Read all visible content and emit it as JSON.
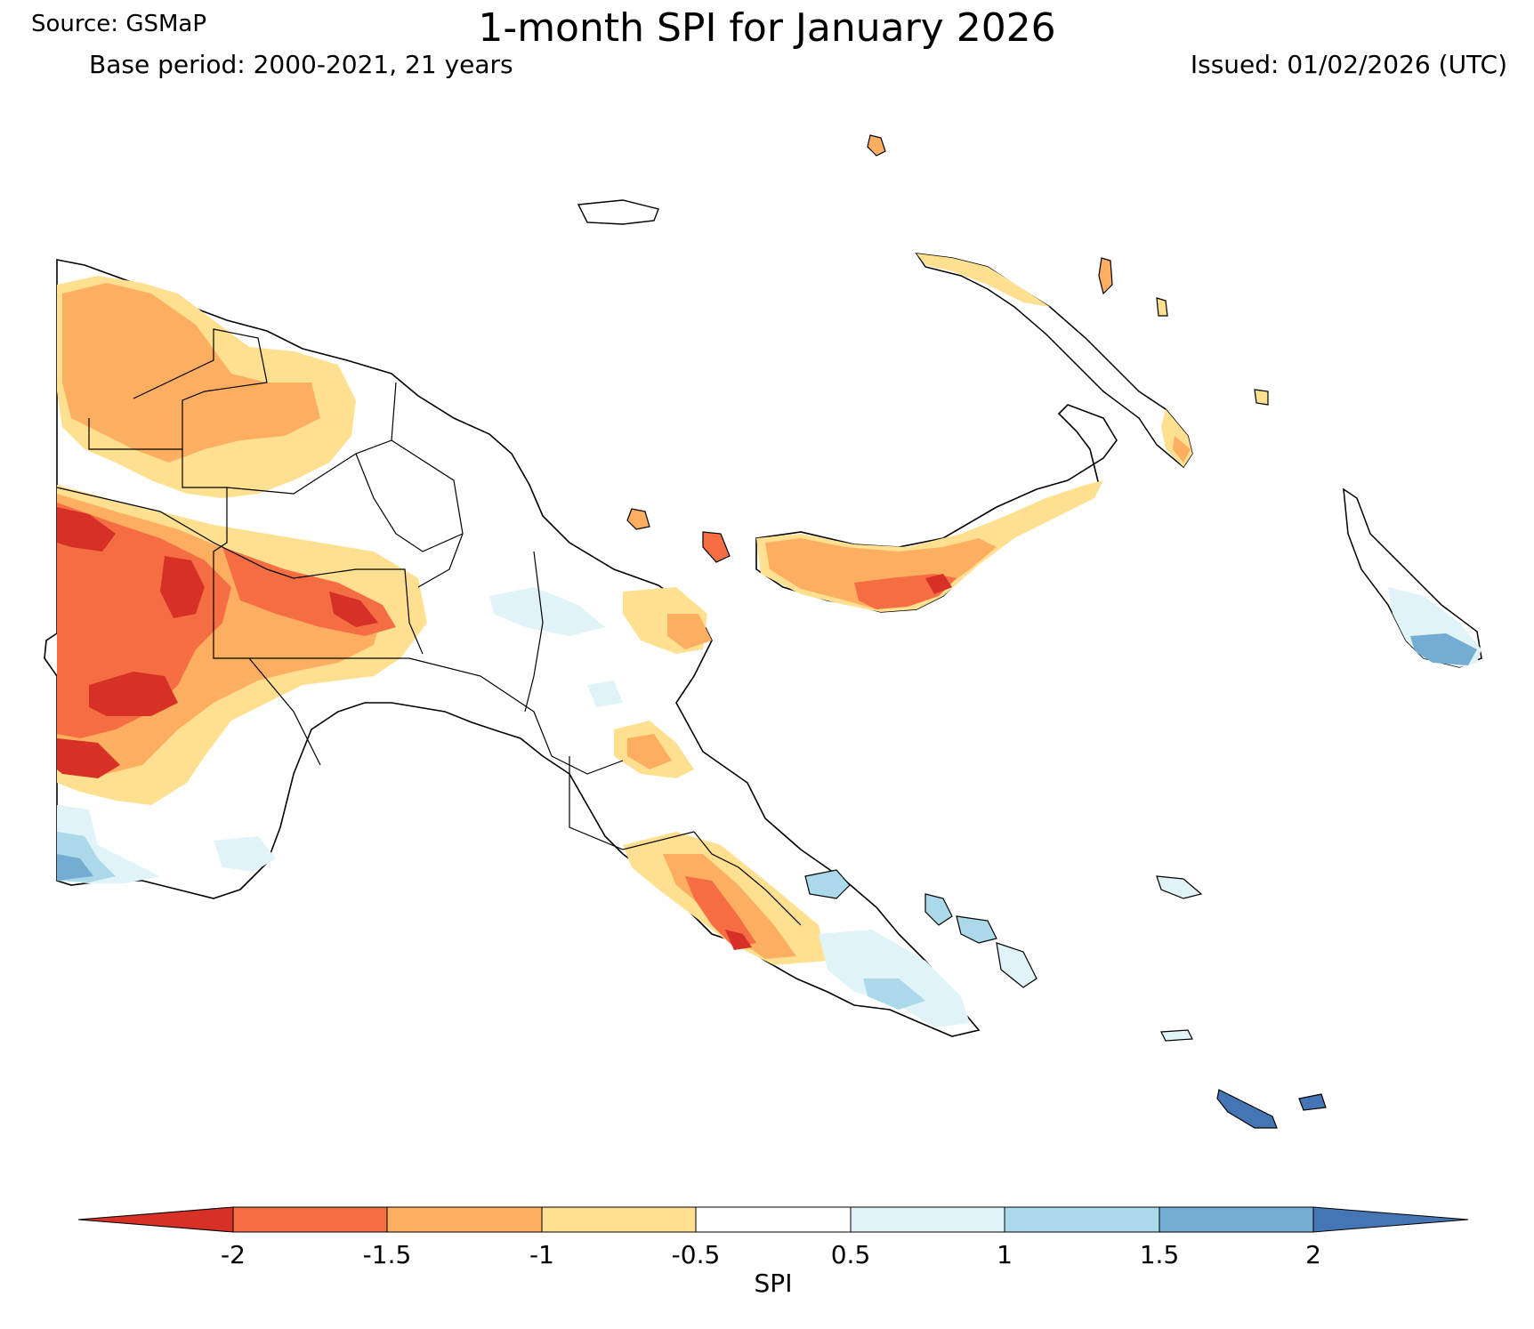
{
  "header": {
    "title": "1-month SPI for January 2026",
    "source": "Source: GSMaP",
    "base_period": "Base period: 2000-2021, 21 years",
    "issued": "Issued: 01/02/2026 (UTC)"
  },
  "legend": {
    "label": "SPI",
    "ticks": [
      "-2",
      "-1.5",
      "-1",
      "-0.5",
      "0.5",
      "1",
      "1.5",
      "2"
    ],
    "bins": [
      {
        "range": "< -2",
        "color": "#d73027"
      },
      {
        "range": "-2 to -1.5",
        "color": "#f46d43"
      },
      {
        "range": "-1.5 to -1",
        "color": "#fdae61"
      },
      {
        "range": "-1 to -0.5",
        "color": "#fee090"
      },
      {
        "range": "-0.5 to 0.5",
        "color": "#ffffff"
      },
      {
        "range": "0.5 to 1",
        "color": "#e0f3f8"
      },
      {
        "range": "1 to 1.5",
        "color": "#abd9e9"
      },
      {
        "range": "1.5 to 2",
        "color": "#74add1"
      },
      {
        "range": "> 2",
        "color": "#4575b4"
      }
    ]
  }
}
